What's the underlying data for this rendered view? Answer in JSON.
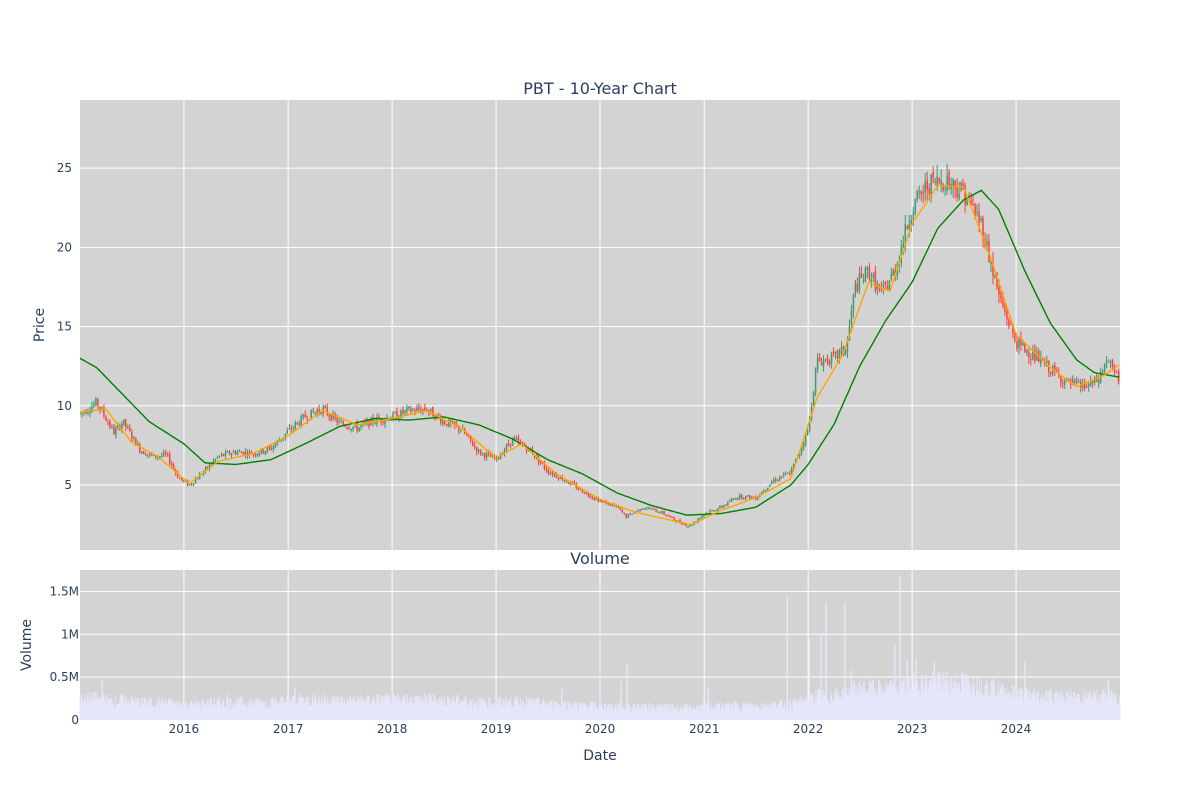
{
  "chart_data": [
    {
      "type": "candlestick",
      "title": "PBT - 10-Year Chart",
      "ylabel": "Price",
      "xlabel": "",
      "x_tick_labels": [
        "2016",
        "2017",
        "2018",
        "2019",
        "2020",
        "2021",
        "2022",
        "2023",
        "2024"
      ],
      "y_tick_labels": [
        "5",
        "10",
        "15",
        "20",
        "25"
      ],
      "x_range": [
        "2015-01-01",
        "2024-12-31"
      ],
      "ylim": [
        0.9,
        29.3
      ],
      "grid": true,
      "legend": "none",
      "colors": {
        "plot_background": "#d3d3d3",
        "up": "#3d9970",
        "down": "#ff4136",
        "sma_short": "#ffa500",
        "sma_long": "#008000"
      },
      "close_anchors": [
        [
          "2015-01-01",
          9.5
        ],
        [
          "2015-03-01",
          10.2
        ],
        [
          "2015-05-01",
          8.3
        ],
        [
          "2015-06-01",
          9.0
        ],
        [
          "2015-08-01",
          7.2
        ],
        [
          "2015-09-15",
          6.8
        ],
        [
          "2015-11-01",
          6.9
        ],
        [
          "2015-12-15",
          5.4
        ],
        [
          "2016-01-20",
          5.0
        ],
        [
          "2016-03-01",
          5.7
        ],
        [
          "2016-05-01",
          6.8
        ],
        [
          "2016-07-01",
          7.1
        ],
        [
          "2016-09-01",
          7.0
        ],
        [
          "2016-11-01",
          7.3
        ],
        [
          "2017-01-01",
          8.4
        ],
        [
          "2017-03-01",
          9.3
        ],
        [
          "2017-05-01",
          9.8
        ],
        [
          "2017-07-01",
          8.9
        ],
        [
          "2017-09-01",
          8.6
        ],
        [
          "2017-11-01",
          9.1
        ],
        [
          "2018-01-01",
          9.3
        ],
        [
          "2018-03-01",
          9.7
        ],
        [
          "2018-05-01",
          9.8
        ],
        [
          "2018-07-01",
          9.0
        ],
        [
          "2018-09-01",
          8.5
        ],
        [
          "2018-11-01",
          7.1
        ],
        [
          "2019-01-01",
          6.6
        ],
        [
          "2019-03-01",
          7.9
        ],
        [
          "2019-05-01",
          7.2
        ],
        [
          "2019-07-01",
          5.9
        ],
        [
          "2019-09-01",
          5.3
        ],
        [
          "2019-11-01",
          4.6
        ],
        [
          "2020-01-01",
          4.0
        ],
        [
          "2020-03-01",
          3.6
        ],
        [
          "2020-04-01",
          3.0
        ],
        [
          "2020-06-01",
          3.6
        ],
        [
          "2020-08-01",
          3.3
        ],
        [
          "2020-10-01",
          2.7
        ],
        [
          "2020-11-10",
          2.4
        ],
        [
          "2021-01-01",
          3.2
        ],
        [
          "2021-03-01",
          3.6
        ],
        [
          "2021-05-01",
          4.3
        ],
        [
          "2021-07-01",
          4.2
        ],
        [
          "2021-09-01",
          5.3
        ],
        [
          "2021-11-01",
          5.8
        ],
        [
          "2022-01-01",
          8.5
        ],
        [
          "2022-02-01",
          12.8
        ],
        [
          "2022-04-01",
          13.0
        ],
        [
          "2022-05-15",
          13.6
        ],
        [
          "2022-06-15",
          17.5
        ],
        [
          "2022-08-01",
          18.5
        ],
        [
          "2022-09-15",
          17.0
        ],
        [
          "2022-11-01",
          18.5
        ],
        [
          "2023-01-01",
          22.5
        ],
        [
          "2023-03-01",
          24.0
        ],
        [
          "2023-05-01",
          24.3
        ],
        [
          "2023-07-01",
          23.5
        ],
        [
          "2023-09-01",
          21.5
        ],
        [
          "2023-11-01",
          17.0
        ],
        [
          "2024-01-01",
          14.0
        ],
        [
          "2024-03-01",
          13.2
        ],
        [
          "2024-05-01",
          12.3
        ],
        [
          "2024-07-01",
          11.4
        ],
        [
          "2024-09-01",
          11.2
        ],
        [
          "2024-10-15",
          11.6
        ],
        [
          "2024-11-15",
          12.9
        ],
        [
          "2024-12-31",
          11.5
        ]
      ],
      "sma_short_anchors": [
        [
          "2015-01-01",
          9.6
        ],
        [
          "2015-04-01",
          9.8
        ],
        [
          "2015-07-01",
          7.7
        ],
        [
          "2015-10-01",
          6.8
        ],
        [
          "2016-01-20",
          5.1
        ],
        [
          "2016-05-01",
          6.5
        ],
        [
          "2016-09-01",
          7.0
        ],
        [
          "2017-01-01",
          8.1
        ],
        [
          "2017-05-01",
          9.7
        ],
        [
          "2017-09-01",
          8.8
        ],
        [
          "2018-01-01",
          9.2
        ],
        [
          "2018-05-01",
          9.7
        ],
        [
          "2018-09-01",
          8.6
        ],
        [
          "2019-01-01",
          6.7
        ],
        [
          "2019-04-01",
          7.6
        ],
        [
          "2019-08-01",
          5.7
        ],
        [
          "2020-01-01",
          4.1
        ],
        [
          "2020-05-01",
          3.3
        ],
        [
          "2020-11-15",
          2.5
        ],
        [
          "2021-03-01",
          3.4
        ],
        [
          "2021-07-01",
          4.2
        ],
        [
          "2021-11-01",
          5.4
        ],
        [
          "2022-02-01",
          10.5
        ],
        [
          "2022-05-01",
          13.2
        ],
        [
          "2022-08-01",
          17.8
        ],
        [
          "2022-10-15",
          17.2
        ],
        [
          "2023-01-01",
          21.5
        ],
        [
          "2023-04-01",
          23.9
        ],
        [
          "2023-07-01",
          23.8
        ],
        [
          "2023-10-01",
          19.5
        ],
        [
          "2024-01-01",
          14.5
        ],
        [
          "2024-05-01",
          12.4
        ],
        [
          "2024-08-01",
          11.2
        ],
        [
          "2024-11-01",
          11.9
        ],
        [
          "2024-12-31",
          12.6
        ]
      ],
      "sma_long_anchors": [
        [
          "2015-01-01",
          13.0
        ],
        [
          "2015-03-01",
          12.4
        ],
        [
          "2015-06-01",
          10.7
        ],
        [
          "2015-09-01",
          9.0
        ],
        [
          "2016-01-01",
          7.6
        ],
        [
          "2016-03-15",
          6.4
        ],
        [
          "2016-07-01",
          6.3
        ],
        [
          "2016-11-01",
          6.6
        ],
        [
          "2017-03-01",
          7.6
        ],
        [
          "2017-07-01",
          8.7
        ],
        [
          "2017-11-01",
          9.2
        ],
        [
          "2018-03-01",
          9.1
        ],
        [
          "2018-07-01",
          9.3
        ],
        [
          "2018-11-01",
          8.8
        ],
        [
          "2019-03-01",
          7.9
        ],
        [
          "2019-07-01",
          6.6
        ],
        [
          "2019-11-01",
          5.7
        ],
        [
          "2020-03-01",
          4.5
        ],
        [
          "2020-07-01",
          3.7
        ],
        [
          "2020-11-01",
          3.1
        ],
        [
          "2021-03-01",
          3.2
        ],
        [
          "2021-07-01",
          3.6
        ],
        [
          "2021-11-01",
          5.0
        ],
        [
          "2022-01-01",
          6.3
        ],
        [
          "2022-04-01",
          8.8
        ],
        [
          "2022-07-01",
          12.5
        ],
        [
          "2022-10-01",
          15.4
        ],
        [
          "2023-01-01",
          17.8
        ],
        [
          "2023-04-01",
          21.2
        ],
        [
          "2023-07-01",
          23.0
        ],
        [
          "2023-09-01",
          23.6
        ],
        [
          "2023-11-01",
          22.4
        ],
        [
          "2024-02-01",
          18.5
        ],
        [
          "2024-05-01",
          15.2
        ],
        [
          "2024-08-01",
          12.9
        ],
        [
          "2024-10-01",
          12.1
        ],
        [
          "2024-12-31",
          11.8
        ]
      ],
      "candles": []
    },
    {
      "type": "bar",
      "title": "Volume",
      "ylabel": "Volume",
      "xlabel": "Date",
      "x_tick_labels": [
        "2016",
        "2017",
        "2018",
        "2019",
        "2020",
        "2021",
        "2022",
        "2023",
        "2024"
      ],
      "y_tick_labels": [
        "0",
        "0.5M",
        "1M",
        "1.5M"
      ],
      "x_range": [
        "2015-01-01",
        "2024-12-31"
      ],
      "ylim": [
        0,
        1750000
      ],
      "grid": true,
      "colors": {
        "bar": "#e6e6fa",
        "plot_background": "#d3d3d3"
      },
      "spikes": [
        [
          "2015-03-20",
          460000
        ],
        [
          "2016-06-01",
          300000
        ],
        [
          "2017-01-25",
          370000
        ],
        [
          "2019-08-20",
          360000
        ],
        [
          "2020-01-01",
          1500000
        ],
        [
          "2020-03-15",
          450000
        ],
        [
          "2020-04-05",
          660000
        ],
        [
          "2021-01-15",
          390000
        ],
        [
          "2021-10-20",
          1450000
        ],
        [
          "2022-01-05",
          950000
        ],
        [
          "2022-02-15",
          1000000
        ],
        [
          "2022-03-05",
          1380000
        ],
        [
          "2022-05-10",
          1370000
        ],
        [
          "2022-06-01",
          580000
        ],
        [
          "2022-11-01",
          880000
        ],
        [
          "2022-11-20",
          1680000
        ],
        [
          "2022-12-15",
          700000
        ],
        [
          "2023-01-15",
          720000
        ],
        [
          "2023-03-20",
          680000
        ],
        [
          "2024-02-01",
          690000
        ],
        [
          "2024-11-20",
          470000
        ]
      ]
    }
  ]
}
